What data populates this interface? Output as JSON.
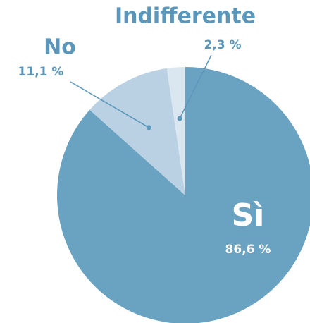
{
  "chart_data": {
    "type": "pie",
    "categories": [
      "Sì",
      "No",
      "Indifferente"
    ],
    "values": [
      86.6,
      11.1,
      2.3
    ],
    "value_labels": [
      "86,6 %",
      "11,1 %",
      "2,3 %"
    ],
    "colors": [
      "#6aa3c2",
      "#b9d1e3",
      "#dbe7f0"
    ],
    "label_color": "#5b97bb"
  }
}
